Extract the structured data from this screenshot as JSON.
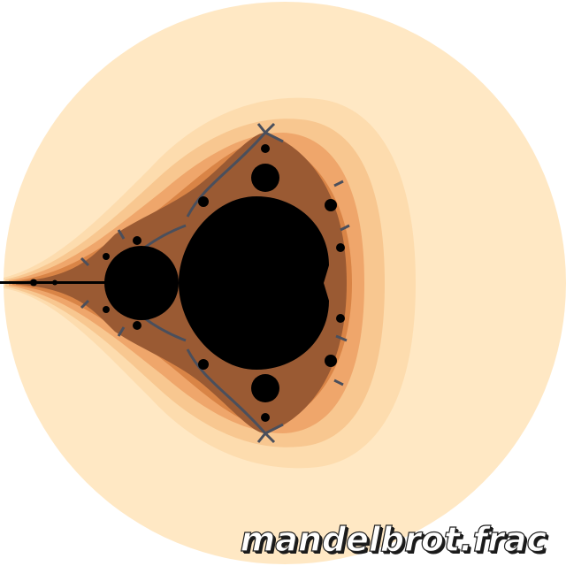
{
  "image": {
    "caption": "mandelbrot.frac",
    "subject": "mandelbrot-set-fractal",
    "colors": {
      "background": "#ffffff",
      "band_1": "#ffe8c4",
      "band_2": "#fddcae",
      "band_3": "#f8c790",
      "band_4": "#efa66b",
      "band_5": "#d98446",
      "band_6": "#9a5a33",
      "set": "#000000",
      "caption_fill": "#ffffff",
      "caption_outline": "#222222"
    }
  }
}
